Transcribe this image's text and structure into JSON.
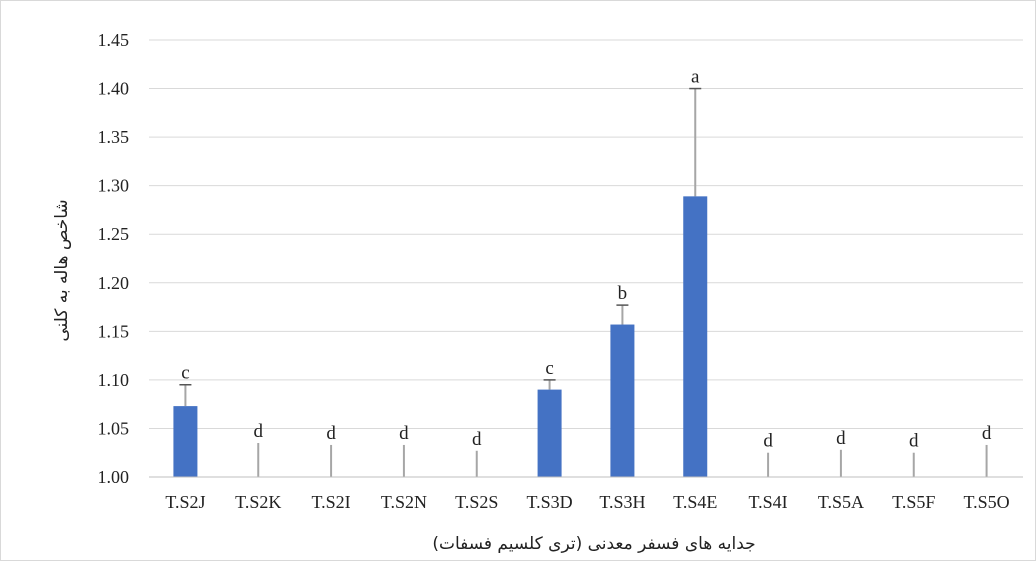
{
  "chart_data": {
    "type": "bar",
    "categories": [
      "T.S2J",
      "T.S2K",
      "T.S2I",
      "T.S2N",
      "T.S2S",
      "T.S3D",
      "T.S3H",
      "T.S4E",
      "T.S4I",
      "T.S5A",
      "T.S5F",
      "T.S5O"
    ],
    "values": [
      1.073,
      1.0,
      1.0,
      1.0,
      1.0,
      1.09,
      1.157,
      1.289,
      1.0,
      1.0,
      1.0,
      1.0
    ],
    "error_upper": [
      1.095,
      1.035,
      1.033,
      1.033,
      1.027,
      1.1,
      1.177,
      1.4,
      1.025,
      1.028,
      1.025,
      1.033
    ],
    "significance_letters": [
      "c",
      "d",
      "d",
      "d",
      "d",
      "c",
      "b",
      "a",
      "d",
      "d",
      "d",
      "d"
    ],
    "xlabel": "جدایه های فسفر معدنی (تری کلسیم فسفات)",
    "ylabel": "شاخص هاله به کلنی",
    "ylim": [
      1.0,
      1.45
    ],
    "yticks": [
      "1.00",
      "1.05",
      "1.10",
      "1.15",
      "1.20",
      "1.25",
      "1.30",
      "1.35",
      "1.40",
      "1.45"
    ],
    "grid": true,
    "legend": "none",
    "bar_color": "#4472c4",
    "error_color": "#a6a6a6"
  }
}
